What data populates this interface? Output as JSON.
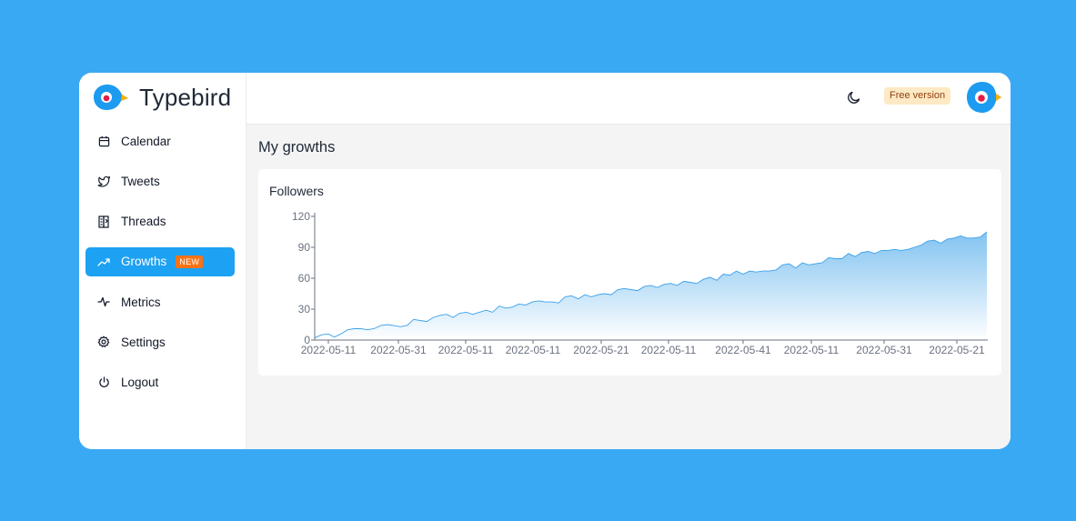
{
  "app": {
    "name": "Typebird"
  },
  "sidebar": {
    "items": [
      {
        "label": "Calendar",
        "icon": "calendar-icon"
      },
      {
        "label": "Tweets",
        "icon": "twitter-bird-icon"
      },
      {
        "label": "Threads",
        "icon": "threads-icon"
      },
      {
        "label": "Growths",
        "icon": "trending-up-icon",
        "active": true,
        "badge": "NEW"
      },
      {
        "label": "Metrics",
        "icon": "activity-icon"
      },
      {
        "label": "Settings",
        "icon": "gear-icon"
      },
      {
        "label": "Logout",
        "icon": "power-icon"
      }
    ]
  },
  "header": {
    "theme_toggle_icon": "moon-icon",
    "plan_badge": "Free version",
    "avatar_icon": "typebird-avatar-icon"
  },
  "main": {
    "title": "My growths",
    "card_title": "Followers"
  },
  "colors": {
    "background": "#3aa9f4",
    "accent": "#1da1f2",
    "badge_new": "#f97316",
    "plan_badge_bg": "#fde9c4",
    "series_line": "#3aa0ea",
    "series_fill": "#8cc8f2"
  },
  "chart_data": {
    "type": "area",
    "title": "Followers",
    "xlabel": "",
    "ylabel": "",
    "ylim": [
      0,
      120
    ],
    "yticks": [
      0,
      30,
      60,
      90,
      120
    ],
    "xticks": [
      "2022-05-11",
      "2022-05-31",
      "2022-05-11",
      "2022-05-11",
      "2022-05-21",
      "2022-05-11",
      "2022-05-41",
      "2022-05-11",
      "2022-05-31",
      "2022-05-21"
    ],
    "grid": false,
    "series": [
      {
        "values": [
          2,
          5,
          6,
          3,
          6,
          10,
          11,
          11,
          10,
          11,
          14,
          15,
          14,
          13,
          14,
          20,
          19,
          18,
          22,
          24,
          25,
          22,
          26,
          27,
          25,
          27,
          29,
          27,
          33,
          31,
          32,
          35,
          34,
          37,
          38,
          37,
          37,
          36,
          42,
          43,
          40,
          44,
          42,
          44,
          45,
          44,
          49,
          50,
          49,
          48,
          52,
          53,
          51,
          54,
          55,
          53,
          57,
          56,
          55,
          59,
          61,
          58,
          64,
          63,
          67,
          64,
          67,
          66,
          67,
          67,
          68,
          73,
          74,
          70,
          75,
          73,
          74,
          75,
          80,
          79,
          79,
          84,
          81,
          85,
          86,
          84,
          87,
          87,
          88,
          87,
          88,
          90,
          92,
          96,
          97,
          94,
          98,
          99,
          101,
          99,
          99,
          100,
          105
        ]
      }
    ]
  }
}
